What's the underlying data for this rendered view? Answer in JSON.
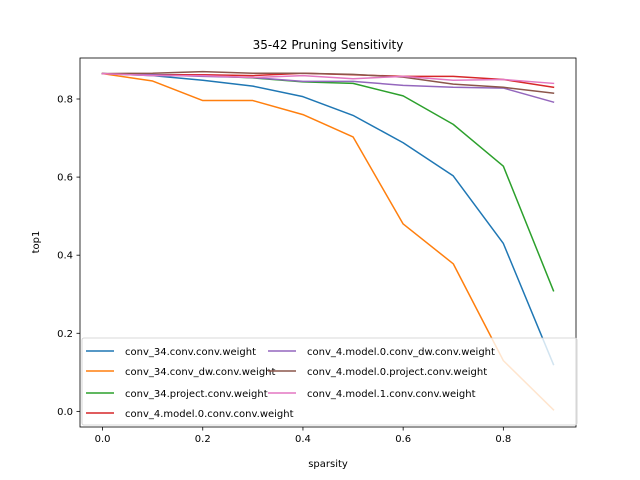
{
  "chart_data": {
    "type": "line",
    "title": "35-42 Pruning Sensitivity",
    "xlabel": "sparsity",
    "ylabel": "top1",
    "xlim": [
      -0.045,
      0.945
    ],
    "ylim": [
      -0.04,
      0.905
    ],
    "x_ticks": [
      "0.0",
      "0.2",
      "0.4",
      "0.6",
      "0.8"
    ],
    "y_ticks": [
      "0.0",
      "0.2",
      "0.4",
      "0.6",
      "0.8"
    ],
    "grid": false,
    "legend_position": "lower-left",
    "x": [
      0.0,
      0.1,
      0.2,
      0.3,
      0.4,
      0.5,
      0.6,
      0.7,
      0.8,
      0.9
    ],
    "series": [
      {
        "name": "conv_34.conv.conv.weight",
        "color": "#1f77b4",
        "values": [
          0.865,
          0.86,
          0.848,
          0.833,
          0.806,
          0.758,
          0.688,
          0.603,
          0.43,
          0.12
        ]
      },
      {
        "name": "conv_34.conv_dw.conv.weight",
        "color": "#ff7f0e",
        "values": [
          0.865,
          0.846,
          0.796,
          0.796,
          0.76,
          0.703,
          0.48,
          0.378,
          0.13,
          0.004
        ]
      },
      {
        "name": "conv_34.project.conv.weight",
        "color": "#2ca02c",
        "values": [
          0.865,
          0.862,
          0.86,
          0.854,
          0.844,
          0.84,
          0.808,
          0.735,
          0.628,
          0.309
        ]
      },
      {
        "name": "conv_4.model.0.conv.conv.weight",
        "color": "#d62728",
        "values": [
          0.865,
          0.862,
          0.862,
          0.86,
          0.866,
          0.862,
          0.858,
          0.858,
          0.85,
          0.83
        ]
      },
      {
        "name": "conv_4.model.0.conv_dw.conv.weight",
        "color": "#9467bd",
        "values": [
          0.865,
          0.862,
          0.858,
          0.855,
          0.845,
          0.845,
          0.835,
          0.83,
          0.828,
          0.792
        ]
      },
      {
        "name": "conv_4.model.0.project.conv.weight",
        "color": "#8c564b",
        "values": [
          0.865,
          0.866,
          0.87,
          0.866,
          0.866,
          0.863,
          0.856,
          0.838,
          0.83,
          0.815
        ]
      },
      {
        "name": "conv_4.model.1.conv.conv.weight",
        "color": "#e377c2",
        "values": [
          0.865,
          0.86,
          0.86,
          0.855,
          0.86,
          0.852,
          0.858,
          0.848,
          0.85,
          0.84
        ]
      }
    ]
  }
}
